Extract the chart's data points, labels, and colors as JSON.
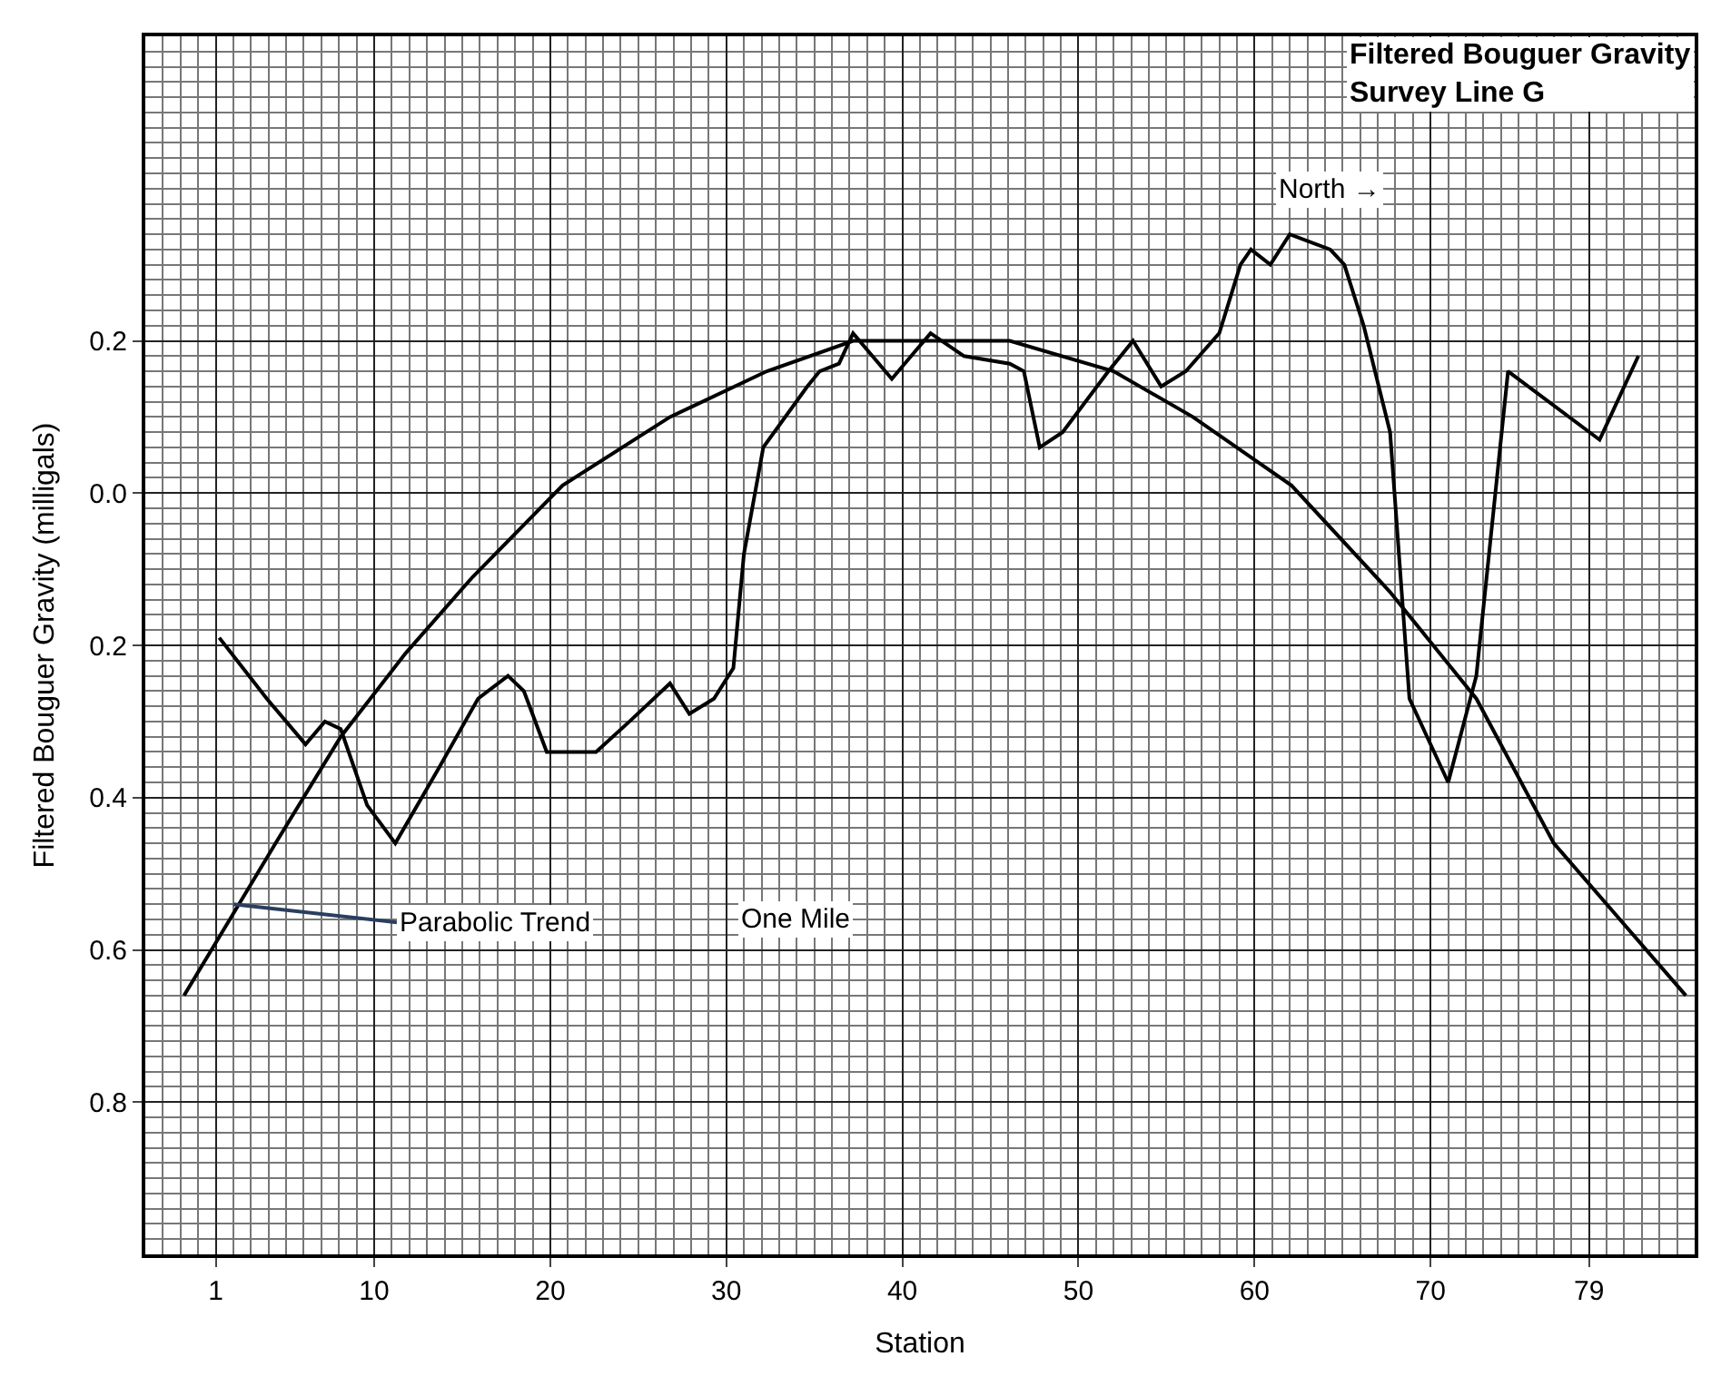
{
  "chart_data": {
    "type": "line",
    "title": "Filtered Bouguer Gravity",
    "subtitle": "Survey Line G",
    "xlabel": "Station",
    "ylabel": "Filtered Bouguer Gravity (milligals)",
    "xlim": [
      -3,
      85
    ],
    "ylim": [
      -1.0,
      0.6
    ],
    "xticks": [
      1,
      10,
      20,
      30,
      40,
      50,
      60,
      70,
      79
    ],
    "yticks": [
      {
        "value": 0.2,
        "label": "0.2"
      },
      {
        "value": 0.0,
        "label": "0.0"
      },
      {
        "value": -0.2,
        "label": "0.2"
      },
      {
        "value": -0.4,
        "label": "0.4"
      },
      {
        "value": -0.6,
        "label": "0.6"
      },
      {
        "value": -0.8,
        "label": "0.8"
      }
    ],
    "grid": true,
    "marker": "none",
    "line_style": "solid",
    "series": [
      {
        "color": "#000000",
        "x": [
          1.2,
          3.9,
          6.1,
          7.2,
          8.1,
          9.6,
          11.2,
          13.7,
          15.9,
          17.6,
          18.5,
          19.8,
          22.6,
          24.5,
          26.8,
          27.9,
          29.3,
          30.4,
          31.0,
          32.1,
          34.6,
          35.3,
          36.4,
          37.2,
          39.4,
          40.5,
          41.6,
          43.5,
          46.1,
          46.9,
          47.8,
          49.1,
          51.7,
          53.1,
          54.7,
          56.1,
          58.0,
          59.2,
          59.8,
          60.9,
          62.0,
          64.3,
          65.1,
          66.2,
          67.7,
          68.8,
          71.0,
          72.6,
          74.4,
          79.6,
          81.8
        ],
        "values": [
          -0.19,
          -0.27,
          -0.33,
          -0.3,
          -0.31,
          -0.41,
          -0.46,
          -0.36,
          -0.27,
          -0.24,
          -0.26,
          -0.34,
          -0.34,
          -0.3,
          -0.25,
          -0.29,
          -0.27,
          -0.23,
          -0.08,
          0.06,
          0.14,
          0.16,
          0.17,
          0.21,
          0.15,
          0.18,
          0.21,
          0.18,
          0.17,
          0.16,
          0.06,
          0.08,
          0.16,
          0.2,
          0.14,
          0.16,
          0.21,
          0.3,
          0.32,
          0.3,
          0.34,
          0.32,
          0.3,
          0.22,
          0.08,
          -0.27,
          -0.38,
          -0.24,
          0.16,
          0.07,
          0.18
        ]
      },
      {
        "color": "#000000",
        "x": [
          -0.8,
          4.4,
          8.1,
          11.8,
          15.6,
          20.7,
          26.8,
          32.3,
          37.2,
          46.1,
          52.0,
          56.5,
          62.1,
          67.7,
          72.6,
          77.0,
          84.5
        ],
        "values": [
          -0.66,
          -0.46,
          -0.32,
          -0.21,
          -0.11,
          0.01,
          0.1,
          0.16,
          0.2,
          0.2,
          0.16,
          0.1,
          0.01,
          -0.13,
          -0.27,
          -0.46,
          -0.66
        ]
      }
    ],
    "annotations": [
      {
        "text": "Parabolic Trend",
        "x": 2.0,
        "y": -0.54
      },
      "One Mile",
      "North →"
    ]
  }
}
